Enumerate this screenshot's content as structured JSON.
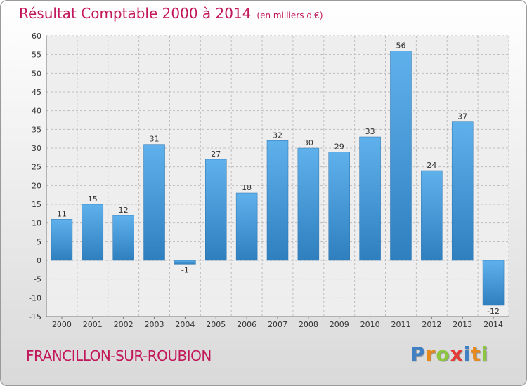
{
  "colors": {
    "title": "#c2185b",
    "bar_top": "#5fb1ec",
    "bar_bottom": "#2f7fbf"
  },
  "chart_data": {
    "type": "bar",
    "title": "Résultat Comptable 2000 à 2014",
    "subtitle": "(en milliers d'€)",
    "xlabel": "",
    "ylabel": "",
    "categories": [
      "2000",
      "2001",
      "2002",
      "2003",
      "2004",
      "2005",
      "2006",
      "2007",
      "2008",
      "2009",
      "2010",
      "2011",
      "2012",
      "2013",
      "2014"
    ],
    "values": [
      11,
      15,
      12,
      31,
      -1,
      27,
      18,
      32,
      30,
      29,
      33,
      56,
      24,
      37,
      -12
    ],
    "ylim": [
      -15,
      60
    ],
    "yticks": [
      -15,
      -10,
      -5,
      0,
      5,
      10,
      15,
      20,
      25,
      30,
      35,
      40,
      45,
      50,
      55,
      60
    ],
    "grid": true
  },
  "footer": {
    "commune": "FRANCILLON-SUR-ROUBION",
    "logo_letters": [
      "P",
      "r",
      "o",
      "x",
      "i",
      "t",
      "i"
    ],
    "logo_colors": [
      "#3f7fc4",
      "#e8891c",
      "#8cc63f",
      "#e53935",
      "#3f7fc4",
      "#e8891c",
      "#8cc63f"
    ]
  }
}
